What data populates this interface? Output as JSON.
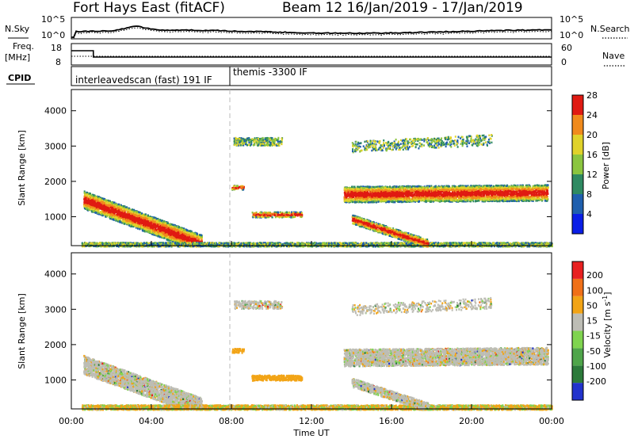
{
  "header": {
    "station": "Fort Hays East (fitACF)",
    "beam_date": "Beam 12  16/Jan/2019 - 17/Jan/2019"
  },
  "labels": {
    "nsky": "N.Sky",
    "nsearch": "N.Search",
    "freq_top": "Freq.",
    "freq_unit": "[MHz]",
    "nave": "Nave",
    "cpid": "CPID",
    "xlabel": "Time UT"
  },
  "cpid_segments": [
    {
      "label": "interleavedscan (fast) 191 IF",
      "start_hour": 0
    },
    {
      "label": "themis -3300 IF",
      "start_hour": 8
    }
  ],
  "ticks": {
    "nsky_left": [
      "10^5",
      "10^0"
    ],
    "nsearch_right": [
      "10^5",
      "10^0"
    ],
    "freq_left": [
      "18",
      "8"
    ],
    "nave_right": [
      "60",
      "0"
    ],
    "range": [
      "1000",
      "2000",
      "3000",
      "4000"
    ],
    "time": [
      "00:00",
      "04:00",
      "08:00",
      "12:00",
      "16:00",
      "20:00",
      "00:00"
    ]
  },
  "chart_data": [
    {
      "type": "heatmap",
      "name": "power",
      "ylabel": "Slant Range [km]",
      "xlabel": "Time UT",
      "x_range_hours": [
        0,
        24
      ],
      "ylim": [
        180,
        4600
      ],
      "colorbar": {
        "label": "Power [dB]",
        "ticks": [
          "4",
          "8",
          "12",
          "16",
          "20",
          "24",
          "28"
        ],
        "colors": [
          "#0a1ee6",
          "#1f5fae",
          "#2f8a62",
          "#8bc53f",
          "#e0d22a",
          "#f08a1c",
          "#e01a12"
        ]
      },
      "regions": [
        {
          "t": [
            0.6,
            6.0
          ],
          "r": [
            1600,
            200
          ],
          "level": "high"
        },
        {
          "t": [
            8.0,
            11.0
          ],
          "r": [
            3100,
            3200
          ],
          "level": "medium"
        },
        {
          "t": [
            8.0,
            8.6
          ],
          "r": [
            1900,
            1900
          ],
          "level": "medium"
        },
        {
          "t": [
            9.0,
            11.5
          ],
          "r": [
            1100,
            1100
          ],
          "level": "medium"
        },
        {
          "t": [
            13.5,
            23.8
          ],
          "r": [
            1700,
            1700
          ],
          "level": "high"
        },
        {
          "t": [
            14.0,
            18.0
          ],
          "r": [
            1000,
            200
          ],
          "level": "high"
        }
      ]
    },
    {
      "type": "heatmap",
      "name": "velocity",
      "ylabel": "Slant Range [km]",
      "xlabel": "Time UT",
      "x_range_hours": [
        0,
        24
      ],
      "ylim": [
        180,
        4600
      ],
      "colorbar": {
        "label": "Velocity [m s^-1]",
        "ticks": [
          "200",
          "100",
          "50",
          "15",
          "-15",
          "-50",
          "-100",
          "-200"
        ],
        "colors": [
          "#2233cc",
          "#2c7a3a",
          "#4fa54a",
          "#7fd44f",
          "#bdbdb5",
          "#f2a416",
          "#f07018",
          "#e82020"
        ]
      }
    }
  ]
}
